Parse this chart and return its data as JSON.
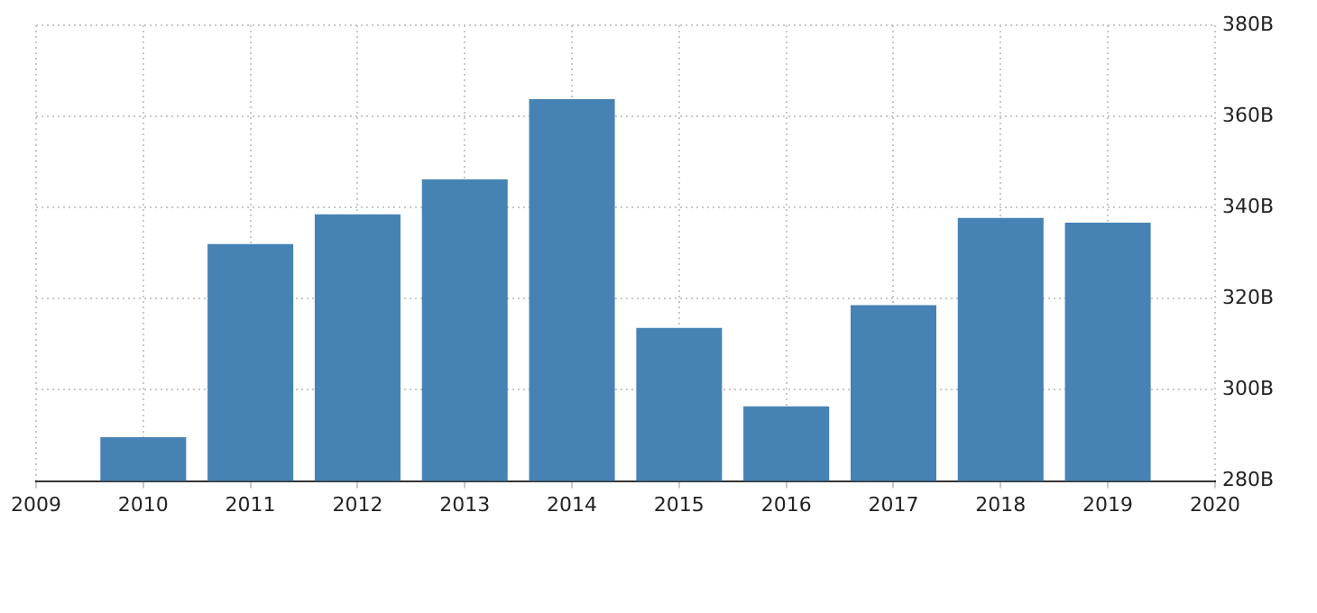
{
  "chart_data": {
    "type": "bar",
    "x": [
      2010,
      2011,
      2012,
      2013,
      2014,
      2015,
      2016,
      2017,
      2018,
      2019
    ],
    "values": [
      289.6,
      332.0,
      338.5,
      346.2,
      363.8,
      313.6,
      296.4,
      318.6,
      337.7,
      336.7
    ],
    "color": "#4682b4",
    "xlim": [
      2009,
      2020
    ],
    "xticks": [
      2009,
      2010,
      2011,
      2012,
      2013,
      2014,
      2015,
      2016,
      2017,
      2018,
      2019,
      2020
    ],
    "ylim": [
      280,
      380
    ],
    "yticks": [
      {
        "value": 280,
        "label": "280B"
      },
      {
        "value": 300,
        "label": "300B"
      },
      {
        "value": 320,
        "label": "320B"
      },
      {
        "value": 340,
        "label": "340B"
      },
      {
        "value": 360,
        "label": "360B"
      },
      {
        "value": 380,
        "label": "380B"
      }
    ],
    "grid": true,
    "legend": false
  }
}
